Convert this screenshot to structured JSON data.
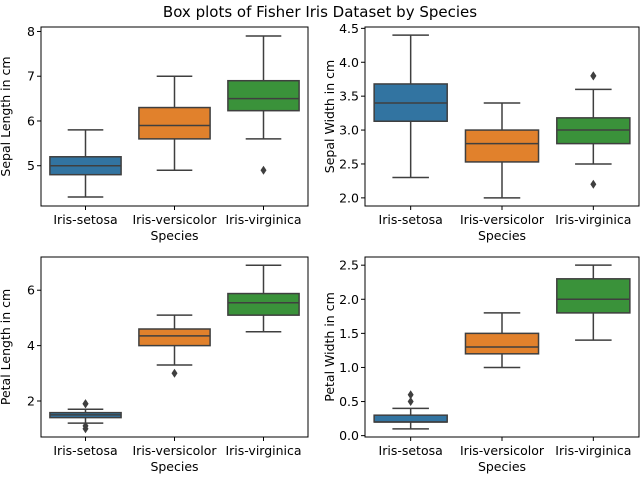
{
  "figure": {
    "suptitle": "Box plots of Fisher Iris Dataset by Species"
  },
  "colors": {
    "setosa": "#3274a1",
    "versicolor": "#e1812c",
    "virginica": "#3a923a",
    "line": "#3f3f3f"
  },
  "chart_data": [
    {
      "type": "box",
      "xlabel": "Species",
      "ylabel": "Sepal Length in cm",
      "categories": [
        "Iris-setosa",
        "Iris-versicolor",
        "Iris-virginica"
      ],
      "yticks": [
        5,
        6,
        7,
        8
      ],
      "ylim": [
        4.1,
        8.1
      ],
      "boxes": [
        {
          "whislo": 4.3,
          "q1": 4.8,
          "med": 5.0,
          "q3": 5.2,
          "whishi": 5.8,
          "fliers": []
        },
        {
          "whislo": 4.9,
          "q1": 5.6,
          "med": 5.9,
          "q3": 6.3,
          "whishi": 7.0,
          "fliers": []
        },
        {
          "whislo": 5.6,
          "q1": 6.23,
          "med": 6.5,
          "q3": 6.9,
          "whishi": 7.9,
          "fliers": [
            4.9
          ]
        }
      ]
    },
    {
      "type": "box",
      "xlabel": "Species",
      "ylabel": "Sepal Width in cm",
      "categories": [
        "Iris-setosa",
        "Iris-versicolor",
        "Iris-virginica"
      ],
      "yticks": [
        2.0,
        2.5,
        3.0,
        3.5,
        4.0,
        4.5
      ],
      "ylim": [
        1.88,
        4.52
      ],
      "boxes": [
        {
          "whislo": 2.3,
          "q1": 3.13,
          "med": 3.4,
          "q3": 3.68,
          "whishi": 4.4,
          "fliers": []
        },
        {
          "whislo": 2.0,
          "q1": 2.53,
          "med": 2.8,
          "q3": 3.0,
          "whishi": 3.4,
          "fliers": []
        },
        {
          "whislo": 2.5,
          "q1": 2.8,
          "med": 3.0,
          "q3": 3.18,
          "whishi": 3.6,
          "fliers": [
            3.8,
            3.8,
            2.2
          ]
        }
      ]
    },
    {
      "type": "box",
      "xlabel": "Species",
      "ylabel": "Petal Length in cm",
      "categories": [
        "Iris-setosa",
        "Iris-versicolor",
        "Iris-virginica"
      ],
      "yticks": [
        2,
        4,
        6
      ],
      "ylim": [
        0.7,
        7.2
      ],
      "boxes": [
        {
          "whislo": 1.2,
          "q1": 1.4,
          "med": 1.5,
          "q3": 1.58,
          "whishi": 1.7,
          "fliers": [
            1.9,
            1.9,
            1.0,
            1.1
          ]
        },
        {
          "whislo": 3.3,
          "q1": 4.0,
          "med": 4.35,
          "q3": 4.6,
          "whishi": 5.1,
          "fliers": [
            3.0
          ]
        },
        {
          "whislo": 4.5,
          "q1": 5.1,
          "med": 5.55,
          "q3": 5.88,
          "whishi": 6.9,
          "fliers": []
        }
      ]
    },
    {
      "type": "box",
      "xlabel": "Species",
      "ylabel": "Petal Width in cm",
      "categories": [
        "Iris-setosa",
        "Iris-versicolor",
        "Iris-virginica"
      ],
      "yticks": [
        0.0,
        0.5,
        1.0,
        1.5,
        2.0,
        2.5
      ],
      "ylim": [
        -0.02,
        2.62
      ],
      "boxes": [
        {
          "whislo": 0.1,
          "q1": 0.2,
          "med": 0.2,
          "q3": 0.3,
          "whishi": 0.4,
          "fliers": [
            0.5,
            0.6
          ]
        },
        {
          "whislo": 1.0,
          "q1": 1.2,
          "med": 1.3,
          "q3": 1.5,
          "whishi": 1.8,
          "fliers": []
        },
        {
          "whislo": 1.4,
          "q1": 1.8,
          "med": 2.0,
          "q3": 2.3,
          "whishi": 2.5,
          "fliers": []
        }
      ]
    }
  ]
}
